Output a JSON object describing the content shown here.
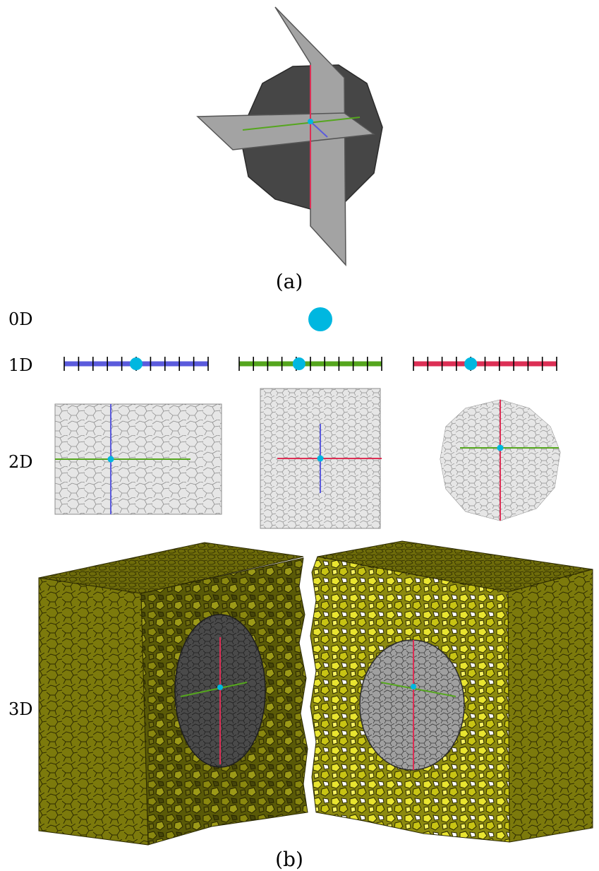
{
  "captions": {
    "a": "(a)",
    "b": "(b)"
  },
  "row_labels": {
    "d0": "0D",
    "d1": "1D",
    "d2": "2D",
    "d3": "3D"
  },
  "colors": {
    "blue": "#5b5bdc",
    "green": "#55a61e",
    "red": "#dc2f55",
    "cyan": "#00b7e0",
    "plane": "#a3a3a3",
    "sphere": "#464646",
    "cell_fill": "#e6e6e6",
    "cell_line": "#8c8c8c",
    "olive": "#7c7a0c",
    "olive_dark": "#5a5a08",
    "yellow": "#c8c414",
    "yellow_bright": "#f0ec50",
    "gray_disc": "#9c9c9c",
    "dark_disc": "#4a4a4a"
  },
  "icons": {
    "panel_a": "intersecting-planes-sphere",
    "node_0d": "cyan-dot",
    "mesh_2d": "voronoi-cells",
    "block_3d": "voronoi-block-cutaway"
  },
  "one_d": [
    {
      "name": "blue-segment",
      "ticks": 11,
      "dot_position": 0.5
    },
    {
      "name": "green-segment",
      "ticks": 11,
      "dot_position": 0.42
    },
    {
      "name": "red-segment",
      "ticks": 11,
      "dot_position": 0.4
    }
  ]
}
